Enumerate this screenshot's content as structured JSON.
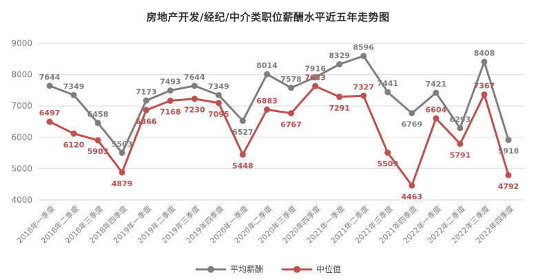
{
  "chart_data": {
    "type": "line",
    "title": "房地产开发/经纪/中介类职位薪酬水平近五年走势图",
    "categories": [
      "2018年一季度",
      "2018年二季度",
      "2018年三季度",
      "2018年四季度",
      "2019年一季度",
      "2019年二季度",
      "2019年三季度",
      "2019年四季度",
      "2020年一季度",
      "2020年二季度",
      "2020年三季度",
      "2020年四季度",
      "2021年一季度",
      "2021年二季度",
      "2021年三季度",
      "2021年四季度",
      "2022年一季度",
      "2022年二季度",
      "2022年三季度",
      "2022年四季度"
    ],
    "series": [
      {
        "name": "平均薪酬",
        "color": "#7f7f7f",
        "values": [
          7644,
          7349,
          6458,
          5503,
          7173,
          7493,
          7644,
          7349,
          6527,
          8014,
          7578,
          7916,
          8329,
          8596,
          7441,
          6769,
          7421,
          6293,
          8408,
          5918
        ],
        "label_side": [
          "above",
          "above",
          "above",
          "above",
          "above",
          "above",
          "above",
          "above",
          "below",
          "above",
          "above",
          "above",
          "above",
          "above",
          "above",
          "below",
          "above",
          "above",
          "above",
          "below"
        ]
      },
      {
        "name": "中位值",
        "color": "#c0504d",
        "values": [
          6497,
          6120,
          5903,
          4879,
          6866,
          7168,
          7230,
          7095,
          5448,
          6883,
          6767,
          7633,
          7291,
          7327,
          5509,
          4463,
          6604,
          5791,
          7367,
          4792
        ],
        "label_side": [
          "above",
          "below",
          "below",
          "below",
          "below",
          "below",
          "below",
          "below",
          "below",
          "above",
          "below",
          "above",
          "below",
          "above",
          "below",
          "below",
          "above",
          "below",
          "above",
          "below"
        ]
      }
    ],
    "ylim": [
      4000,
      9000
    ],
    "ytick_step": 1000,
    "grid": "horizontal",
    "grid_color": "#d9d9d9",
    "axis_text_color": "#808080",
    "x_label_rotation": -45,
    "legend_position": "bottom"
  }
}
